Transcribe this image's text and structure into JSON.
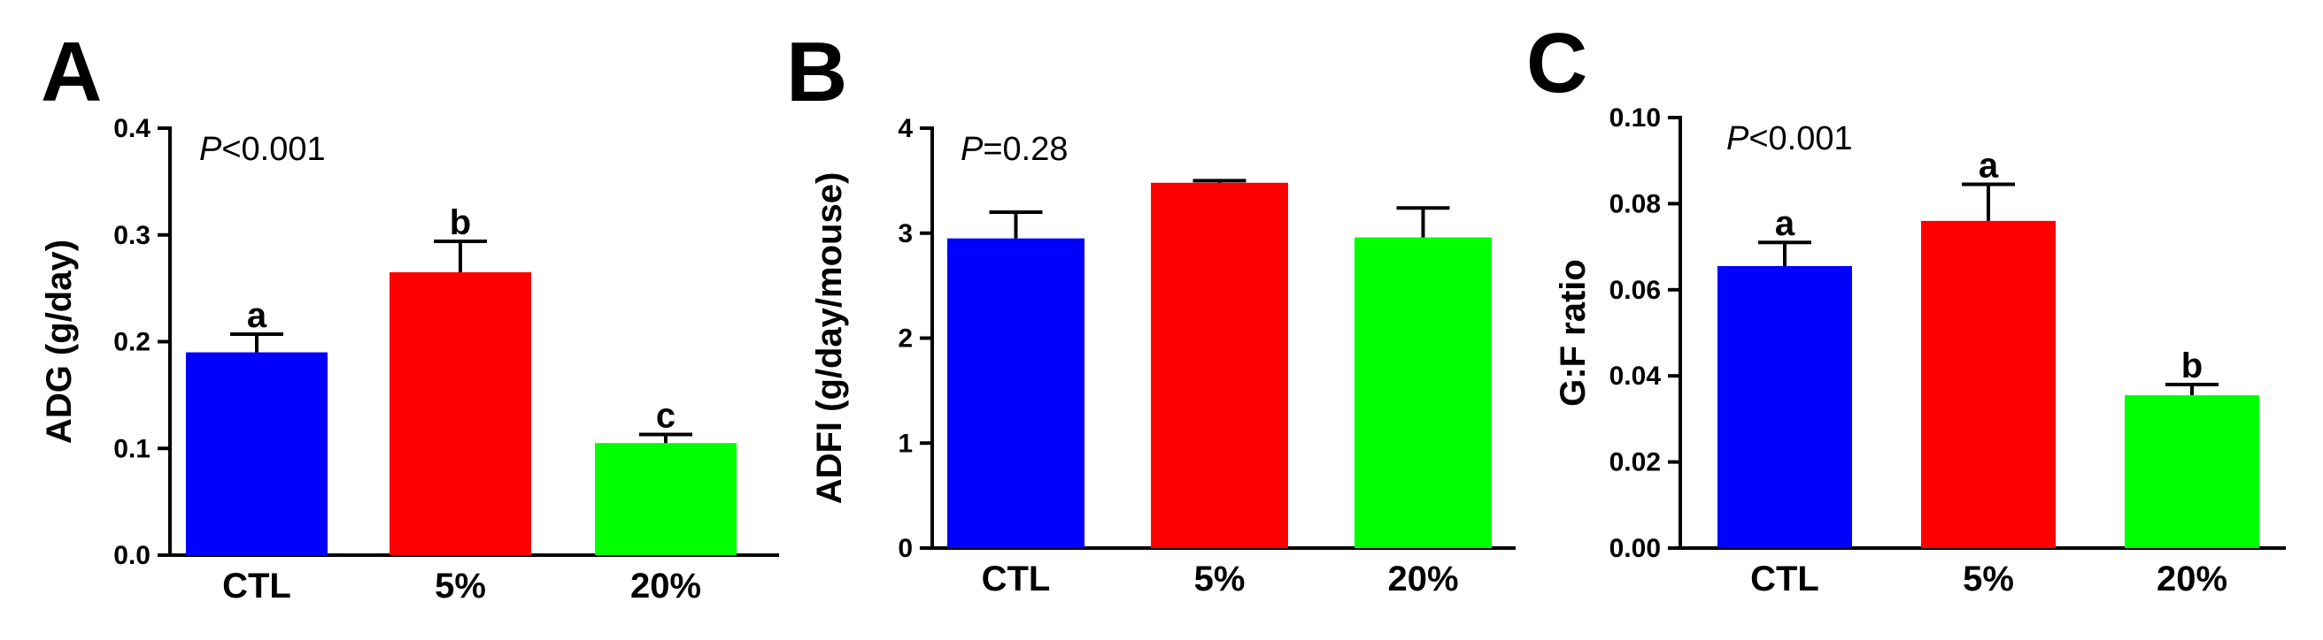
{
  "chart_data": [
    {
      "type": "bar",
      "panel": "A",
      "categories": [
        "CTL",
        "5%",
        "20%"
      ],
      "values": [
        0.19,
        0.265,
        0.105
      ],
      "errors": [
        0.017,
        0.029,
        0.008
      ],
      "sig_letters": [
        "a",
        "b",
        "c"
      ],
      "colors": [
        "#0000ff",
        "#ff0000",
        "#00ff00"
      ],
      "ylabel": "ADG (g/day)",
      "ylim": [
        0,
        0.4
      ],
      "yticks": [
        "0.0",
        "0.1",
        "0.2",
        "0.3",
        "0.4"
      ],
      "pvalue": {
        "symbol": "P",
        "rest": "<0.001"
      },
      "grid": false
    },
    {
      "type": "bar",
      "panel": "B",
      "categories": [
        "CTL",
        "5%",
        "20%"
      ],
      "values": [
        2.95,
        3.48,
        2.96
      ],
      "errors": [
        0.25,
        0.02,
        0.28
      ],
      "sig_letters": [
        "",
        "",
        ""
      ],
      "colors": [
        "#0000ff",
        "#ff0000",
        "#00ff00"
      ],
      "ylabel": "ADFI (g/day/mouse)",
      "ylim": [
        0,
        4
      ],
      "yticks": [
        "0",
        "1",
        "2",
        "3",
        "4"
      ],
      "pvalue": {
        "symbol": "P",
        "rest": "=0.28"
      },
      "grid": false
    },
    {
      "type": "bar",
      "panel": "C",
      "categories": [
        "CTL",
        "5%",
        "20%"
      ],
      "values": [
        0.0655,
        0.076,
        0.0355
      ],
      "errors": [
        0.0055,
        0.0085,
        0.0025
      ],
      "sig_letters": [
        "a",
        "a",
        "b"
      ],
      "colors": [
        "#0000ff",
        "#ff0000",
        "#00ff00"
      ],
      "ylabel": "G:F ratio",
      "ylim": [
        0,
        0.1
      ],
      "yticks": [
        "0.00",
        "0.02",
        "0.04",
        "0.06",
        "0.08",
        "0.10"
      ],
      "pvalue": {
        "symbol": "P",
        "rest": "<0.001"
      },
      "grid": false
    }
  ]
}
